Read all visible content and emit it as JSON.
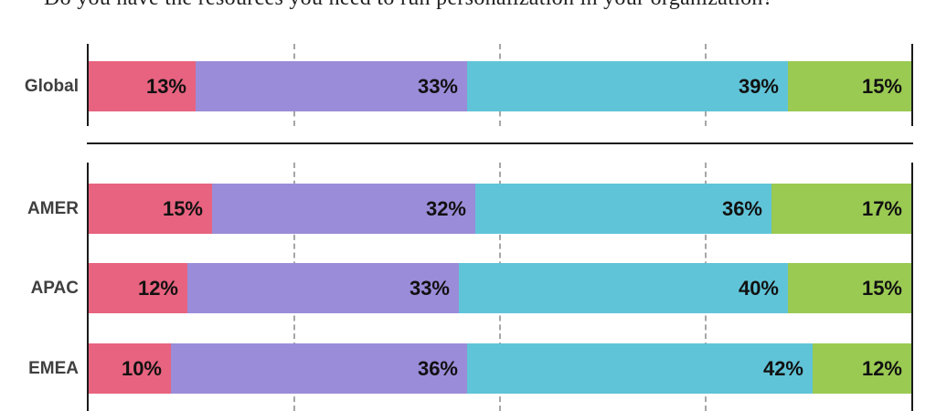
{
  "title": "Do you have the resources you need to run personalization in your organization?",
  "colors": {
    "segment_1": "#E7637F",
    "segment_2": "#9B8CD9",
    "segment_3": "#60C4D8",
    "segment_4": "#9ACA52",
    "axis_line": "#1a1a1a",
    "gridline": "#a6a6a6",
    "value_label": "#111111",
    "row_label": "#3f3f3f"
  },
  "chart_data": {
    "type": "bar",
    "orientation": "horizontal",
    "stacked": true,
    "unit": "%",
    "xlim": [
      0,
      100
    ],
    "gridlines_pct": [
      25,
      50,
      75
    ],
    "grid_style": "dashed-vertical",
    "legend": "none",
    "segment_colors": [
      "#E7637F",
      "#9B8CD9",
      "#60C4D8",
      "#9ACA52"
    ],
    "groups": [
      {
        "name": "global",
        "rows": [
          {
            "label": "Global",
            "values": [
              13,
              33,
              39,
              15
            ]
          }
        ]
      },
      {
        "name": "regions",
        "rows": [
          {
            "label": "AMER",
            "values": [
              15,
              32,
              36,
              17
            ]
          },
          {
            "label": "APAC",
            "values": [
              12,
              33,
              40,
              15
            ]
          },
          {
            "label": "EMEA",
            "values": [
              10,
              36,
              42,
              12
            ]
          }
        ]
      }
    ]
  }
}
